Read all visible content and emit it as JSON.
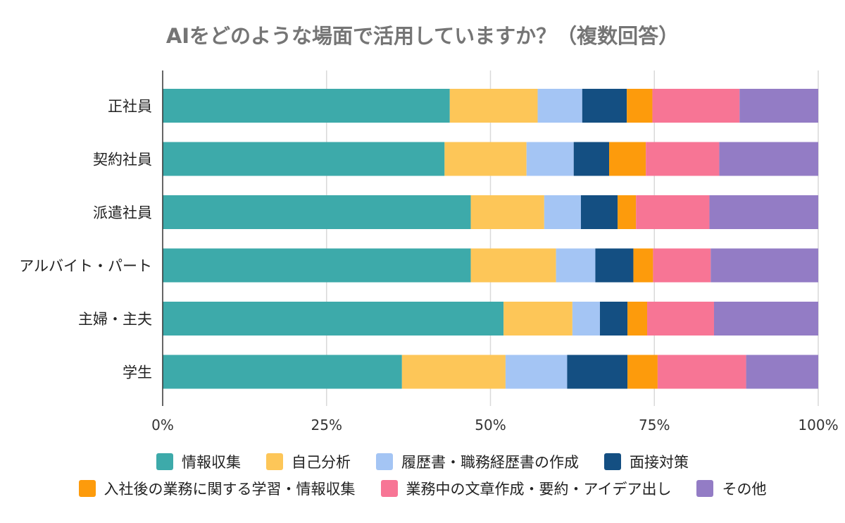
{
  "chart_data": {
    "type": "bar",
    "orientation": "horizontal",
    "stacked": "percent",
    "title": "AIをどのような場面で活用していますか？（複数回答）",
    "categories": [
      "正社員",
      "契約社員",
      "派遣社員",
      "アルバイト・パート",
      "主婦・主夫",
      "学生"
    ],
    "xlim": [
      0,
      100
    ],
    "x_ticks": [
      "0%",
      "25%",
      "50%",
      "75%",
      "100%"
    ],
    "grid": "vertical",
    "legend_position": "bottom",
    "series": [
      {
        "name": "情報収集",
        "color": "#3DAAAA",
        "values": [
          43.8,
          43.0,
          47.0,
          47.0,
          52.0,
          36.5
        ]
      },
      {
        "name": "自己分析",
        "color": "#FDC658",
        "values": [
          13.4,
          12.5,
          11.2,
          13.0,
          10.5,
          15.8
        ]
      },
      {
        "name": "履歴書・職務経歴書の作成",
        "color": "#A4C5F4",
        "values": [
          6.8,
          7.2,
          5.6,
          6.0,
          4.2,
          9.4
        ]
      },
      {
        "name": "面接対策",
        "color": "#144F82",
        "values": [
          6.8,
          5.4,
          5.6,
          5.8,
          4.2,
          9.2
        ]
      },
      {
        "name": "入社後の業務に関する学習・情報収集",
        "color": "#FD9B0C",
        "values": [
          3.9,
          5.6,
          2.8,
          3.0,
          3.0,
          4.6
        ]
      },
      {
        "name": "業務中の文章作成・要約・アイデア出し",
        "color": "#F77595",
        "values": [
          13.3,
          11.2,
          11.2,
          8.8,
          10.2,
          13.5
        ]
      },
      {
        "name": "その他",
        "color": "#937CC5",
        "values": [
          12.0,
          15.1,
          16.6,
          16.4,
          15.9,
          11.0
        ]
      }
    ]
  }
}
